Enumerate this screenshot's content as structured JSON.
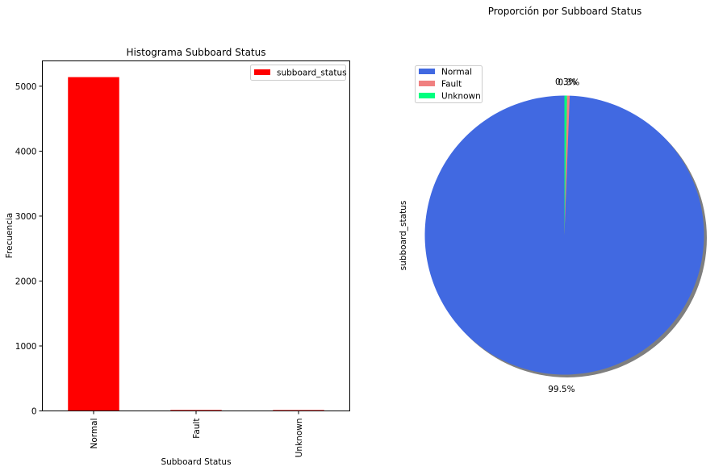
{
  "chart_data": [
    {
      "type": "bar",
      "title": "Histograma Subboard Status",
      "xlabel": "Subboard Status",
      "ylabel": "Frecuencia",
      "categories": [
        "Normal",
        "Fault",
        "Unknown"
      ],
      "series": [
        {
          "name": "subboard_status",
          "values": [
            5140,
            14,
            13
          ]
        }
      ],
      "ylim": [
        0,
        5390
      ],
      "yticks": [
        0,
        1000,
        2000,
        3000,
        4000,
        5000
      ],
      "grid": false,
      "legend_position": "top-right",
      "colors": {
        "bar": "#ff0000"
      }
    },
    {
      "type": "pie",
      "title": "Proporción por Subboard Status",
      "ylabel": "subboard_status",
      "categories": [
        "Normal",
        "Fault",
        "Unknown"
      ],
      "values": [
        99.5,
        0.3,
        0.3
      ],
      "value_labels": [
        "99.5%",
        "0.3%",
        "0.3%"
      ],
      "legend_position": "top-left",
      "shadow": true,
      "colors": {
        "Normal": "#4169e1",
        "Fault": "#f08080",
        "Unknown": "#00ff7f"
      }
    }
  ]
}
